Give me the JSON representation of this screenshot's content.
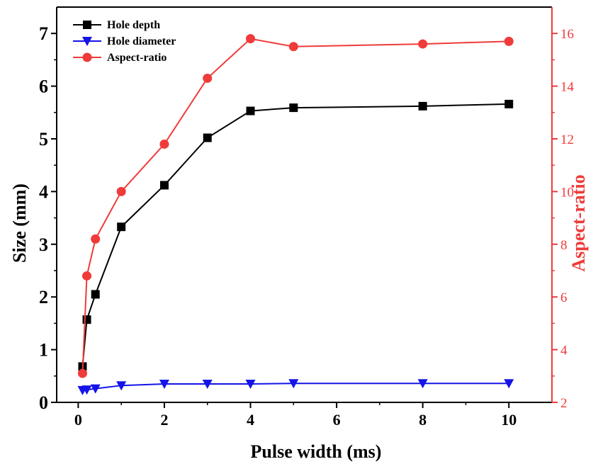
{
  "chart_data": {
    "type": "line",
    "xlabel": "Pulse width (ms)",
    "ylabel_left": "Size (mm)",
    "ylabel_right": "Aspect-ratio",
    "xlim": [
      -0.5,
      11
    ],
    "ylim_left": [
      0,
      7.5
    ],
    "ylim_right": [
      2,
      17
    ],
    "x_ticks": [
      "0",
      "2",
      "4",
      "6",
      "8",
      "10"
    ],
    "y_left_ticks": [
      "0",
      "1",
      "2",
      "3",
      "4",
      "5",
      "6",
      "7"
    ],
    "y_right_ticks": [
      "2",
      "4",
      "6",
      "8",
      "10",
      "12",
      "14",
      "16"
    ],
    "grid": false,
    "legend_position": "top-left",
    "x": [
      0.1,
      0.2,
      0.4,
      1,
      2,
      3,
      4,
      5,
      8,
      10
    ],
    "series": [
      {
        "name": "Hole depth",
        "axis": "left",
        "marker": "square",
        "color": "#000000",
        "values": [
          0.68,
          1.57,
          2.05,
          3.33,
          4.12,
          5.02,
          5.53,
          5.59,
          5.62,
          5.66
        ]
      },
      {
        "name": "Hole diameter",
        "axis": "left",
        "marker": "triangle-down",
        "color": "#1414e8",
        "values": [
          0.23,
          0.24,
          0.26,
          0.32,
          0.35,
          0.35,
          0.35,
          0.36,
          0.36,
          0.36
        ]
      },
      {
        "name": "Aspect-ratio",
        "axis": "right",
        "marker": "circle",
        "color": "#ef3b39",
        "values": [
          3.1,
          6.8,
          8.2,
          10.0,
          11.8,
          14.3,
          15.8,
          15.5,
          15.6,
          15.7
        ]
      }
    ]
  }
}
